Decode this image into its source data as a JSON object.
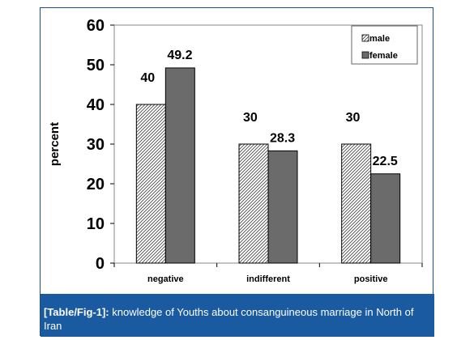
{
  "chart_data": {
    "type": "bar",
    "categories": [
      "negative",
      "indifferent",
      "positive"
    ],
    "series": [
      {
        "name": "male",
        "values": [
          40,
          30,
          30
        ],
        "labels": [
          "40",
          "30",
          "30"
        ],
        "fill": "hatch",
        "color": "#ffffff"
      },
      {
        "name": "female",
        "values": [
          49.2,
          28.3,
          22.5
        ],
        "labels": [
          "49.2",
          "28.3",
          "22.5"
        ],
        "fill": "solid",
        "color": "#6b6b6b"
      }
    ],
    "ylabel": "percent",
    "xlabel": "",
    "ylim": [
      0,
      60
    ],
    "yticks": [
      "0",
      "10",
      "20",
      "30",
      "40",
      "50",
      "60"
    ],
    "grid": false,
    "legend_position": "top-right"
  },
  "caption": {
    "ref": "[Table/Fig-1]:",
    "text": " knowledge of Youths about consanguineous marriage in North of Iran"
  },
  "colors": {
    "caption_background": "#1a5aa0",
    "frame_border": "#1c4f8c",
    "female_bar": "#6b6b6b"
  }
}
